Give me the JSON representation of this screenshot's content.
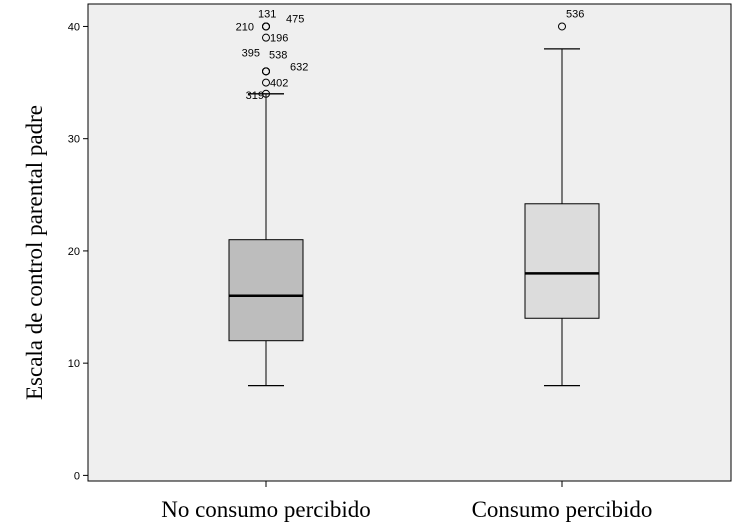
{
  "chart_data": {
    "type": "boxplot",
    "title": "",
    "xlabel": "",
    "ylabel": "Escala de control parental padre",
    "ylim": [
      -0.5,
      42
    ],
    "yticks": [
      0,
      10,
      20,
      30,
      40
    ],
    "grid": false,
    "colors": {
      "plot_background": "#efefef",
      "box_1": "#bdbdbd",
      "box_2": "#dcdcdc",
      "lines": "#000000"
    },
    "categories": [
      "No consumo percibido",
      "Consumo percibido"
    ],
    "boxes": [
      {
        "category": "No consumo percibido",
        "min": 8,
        "q1": 12,
        "median": 16,
        "q3": 21,
        "max": 34,
        "outliers": [
          {
            "id": "131",
            "value": 40
          },
          {
            "id": "210",
            "value": 40
          },
          {
            "id": "475",
            "value": 40
          },
          {
            "id": "196",
            "value": 39
          },
          {
            "id": "395",
            "value": 36
          },
          {
            "id": "538",
            "value": 36
          },
          {
            "id": "632",
            "value": 36
          },
          {
            "id": "402",
            "value": 35
          },
          {
            "id": "319",
            "value": 34
          }
        ]
      },
      {
        "category": "Consumo percibido",
        "min": 8,
        "q1": 14,
        "median": 18,
        "q3": 24.2,
        "max": 38,
        "outliers": [
          {
            "id": "536",
            "value": 40
          }
        ]
      }
    ]
  }
}
